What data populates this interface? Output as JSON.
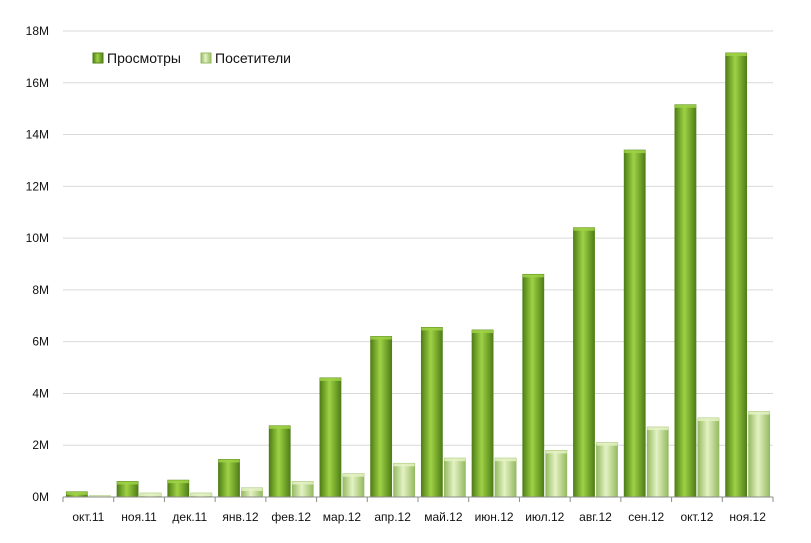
{
  "colors": {
    "views_top": "#9fd245",
    "views_bottom": "#4f7f17",
    "visitors_top": "#e4f2c4",
    "visitors_bottom": "#96bb62",
    "grid": "#d9d9d9",
    "axis": "#8c8c8c"
  },
  "chart_data": {
    "type": "bar",
    "title": "",
    "xlabel": "",
    "ylabel": "",
    "ylim": [
      0,
      18
    ],
    "grid": true,
    "legend_placement": "top-left",
    "y_ticks": [
      "0M",
      "2M",
      "4M",
      "6M",
      "8M",
      "10M",
      "12M",
      "14M",
      "16M",
      "18M"
    ],
    "categories": [
      "окт.11",
      "ноя.11",
      "дек.11",
      "янв.12",
      "фев.12",
      "мар.12",
      "апр.12",
      "май.12",
      "июн.12",
      "июл.12",
      "авг.12",
      "сен.12",
      "окт.12",
      "ноя.12"
    ],
    "series": [
      {
        "name": "Просмотры",
        "values": [
          0.2,
          0.6,
          0.65,
          1.45,
          2.75,
          4.6,
          6.2,
          6.55,
          6.45,
          8.6,
          10.4,
          13.4,
          15.15,
          17.15
        ]
      },
      {
        "name": "Посетители",
        "values": [
          0.05,
          0.15,
          0.15,
          0.35,
          0.6,
          0.9,
          1.3,
          1.5,
          1.5,
          1.8,
          2.1,
          2.7,
          3.05,
          3.3
        ]
      }
    ]
  }
}
